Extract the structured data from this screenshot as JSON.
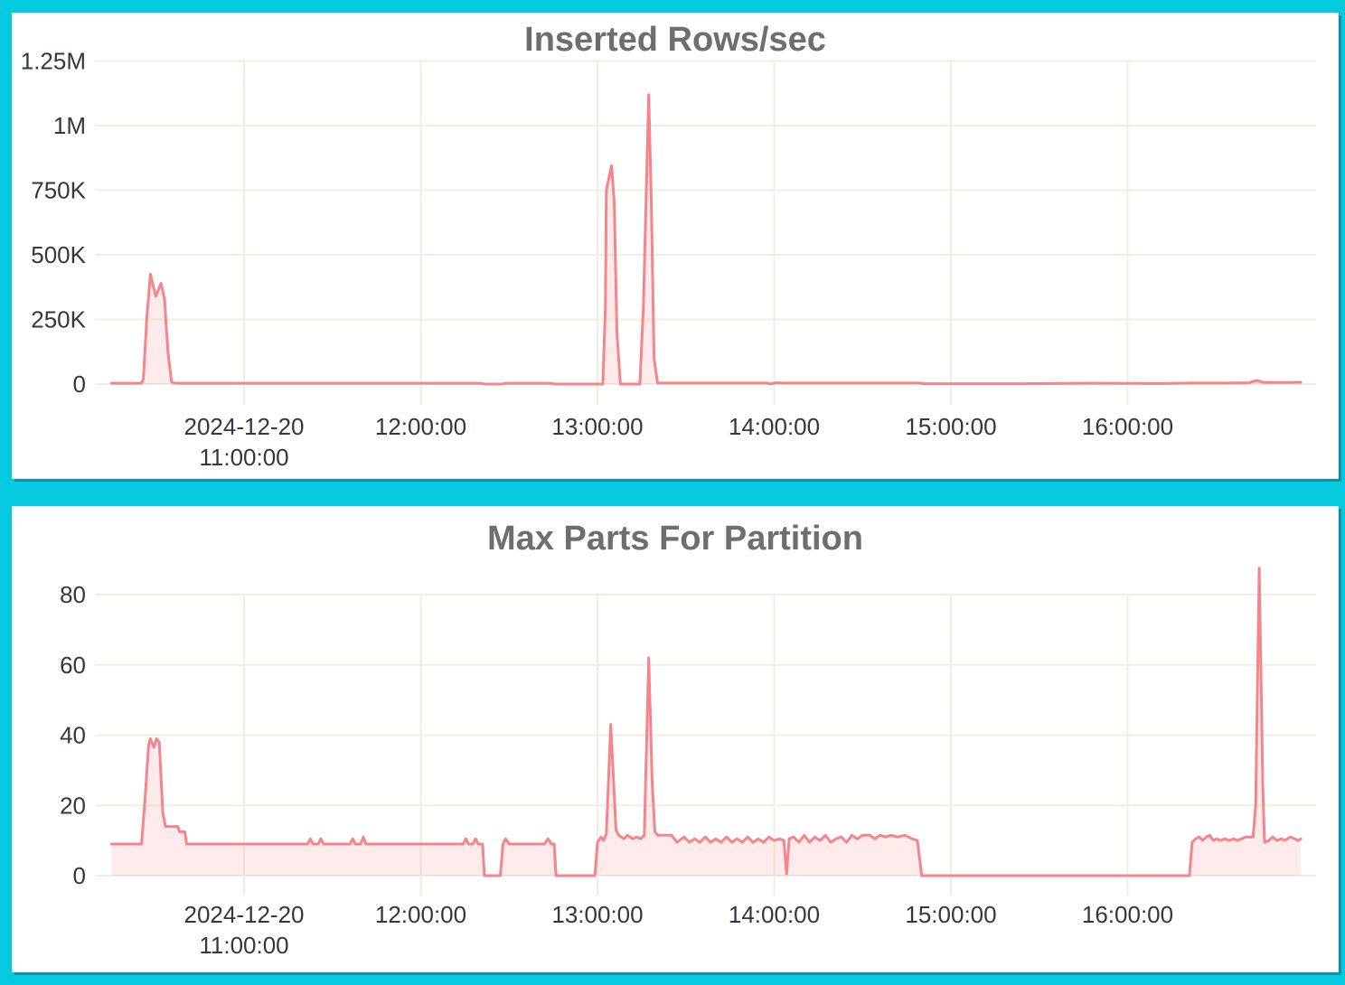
{
  "page": {
    "background_color": "#05C9DE",
    "panel_color": "#FFFFFF",
    "panel_shadow_color": "#0994A9"
  },
  "charts": [
    {
      "title": "Inserted Rows/sec",
      "type": "area",
      "line_color": "#F4858B",
      "fill_color": "rgba(244,133,139,0.16)",
      "grid_color": "#F0EEE1",
      "tick_color": "#32383E",
      "title_color": "#6E6E6E",
      "ylim": [
        0,
        1250000
      ],
      "xlim_hours": [
        10.25,
        16.98
      ],
      "grid": true,
      "legend": "none",
      "y_ticks": [
        {
          "v": 0,
          "label": "0"
        },
        {
          "v": 250000,
          "label": "250K"
        },
        {
          "v": 500000,
          "label": "500K"
        },
        {
          "v": 750000,
          "label": "750K"
        },
        {
          "v": 1000000,
          "label": "1M"
        },
        {
          "v": 1250000,
          "label": "1.25M"
        }
      ],
      "x_ticks": [
        {
          "t": 11,
          "lines": [
            "2024-12-20",
            "11:00:00"
          ]
        },
        {
          "t": 12,
          "lines": [
            "12:00:00"
          ]
        },
        {
          "t": 13,
          "lines": [
            "13:00:00"
          ]
        },
        {
          "t": 14,
          "lines": [
            "14:00:00"
          ]
        },
        {
          "t": 15,
          "lines": [
            "15:00:00"
          ]
        },
        {
          "t": 16,
          "lines": [
            "16:00:00"
          ]
        }
      ],
      "points": [
        [
          10.25,
          3000
        ],
        [
          10.42,
          3000
        ],
        [
          10.43,
          20000
        ],
        [
          10.45,
          260000
        ],
        [
          10.47,
          425000
        ],
        [
          10.5,
          340000
        ],
        [
          10.53,
          390000
        ],
        [
          10.55,
          330000
        ],
        [
          10.57,
          120000
        ],
        [
          10.59,
          8000
        ],
        [
          10.61,
          3000
        ],
        [
          11.2,
          3000
        ],
        [
          12.0,
          3000
        ],
        [
          12.34,
          3000
        ],
        [
          12.36,
          0
        ],
        [
          12.46,
          0
        ],
        [
          12.48,
          3000
        ],
        [
          12.73,
          3000
        ],
        [
          12.76,
          0
        ],
        [
          13.0,
          0
        ],
        [
          13.03,
          0
        ],
        [
          13.045,
          300000
        ],
        [
          13.05,
          750000
        ],
        [
          13.08,
          845000
        ],
        [
          13.095,
          700000
        ],
        [
          13.11,
          200000
        ],
        [
          13.13,
          0
        ],
        [
          13.24,
          0
        ],
        [
          13.26,
          300000
        ],
        [
          13.29,
          1120000
        ],
        [
          13.305,
          700000
        ],
        [
          13.32,
          100000
        ],
        [
          13.34,
          4000
        ],
        [
          13.6,
          4000
        ],
        [
          13.96,
          4000
        ],
        [
          13.98,
          500
        ],
        [
          14.01,
          5000
        ],
        [
          14.05,
          4000
        ],
        [
          14.4,
          4000
        ],
        [
          14.82,
          4000
        ],
        [
          14.85,
          1500
        ],
        [
          15.4,
          1500
        ],
        [
          15.8,
          3000
        ],
        [
          16.2,
          2000
        ],
        [
          16.36,
          4000
        ],
        [
          16.55,
          4000
        ],
        [
          16.69,
          5000
        ],
        [
          16.73,
          14000
        ],
        [
          16.77,
          6000
        ],
        [
          16.9,
          6000
        ],
        [
          16.98,
          7000
        ]
      ]
    },
    {
      "title": "Max Parts For Partition",
      "type": "area",
      "line_color": "#F4858B",
      "fill_color": "rgba(244,133,139,0.16)",
      "grid_color": "#F0EEE1",
      "tick_color": "#32383E",
      "title_color": "#6E6E6E",
      "ylim": [
        0,
        80
      ],
      "xlim_hours": [
        10.25,
        16.98
      ],
      "grid": true,
      "legend": "none",
      "y_ticks": [
        {
          "v": 0,
          "label": "0"
        },
        {
          "v": 20,
          "label": "20"
        },
        {
          "v": 40,
          "label": "40"
        },
        {
          "v": 60,
          "label": "60"
        },
        {
          "v": 80,
          "label": "80"
        }
      ],
      "x_ticks": [
        {
          "t": 11,
          "lines": [
            "2024-12-20",
            "11:00:00"
          ]
        },
        {
          "t": 12,
          "lines": [
            "12:00:00"
          ]
        },
        {
          "t": 13,
          "lines": [
            "13:00:00"
          ]
        },
        {
          "t": 14,
          "lines": [
            "14:00:00"
          ]
        },
        {
          "t": 15,
          "lines": [
            "15:00:00"
          ]
        },
        {
          "t": 16,
          "lines": [
            "16:00:00"
          ]
        }
      ],
      "points": [
        [
          10.25,
          9
        ],
        [
          10.42,
          9
        ],
        [
          10.44,
          22
        ],
        [
          10.46,
          37
        ],
        [
          10.47,
          39
        ],
        [
          10.49,
          36.5
        ],
        [
          10.505,
          39
        ],
        [
          10.52,
          38
        ],
        [
          10.54,
          18
        ],
        [
          10.555,
          14
        ],
        [
          10.625,
          14
        ],
        [
          10.635,
          12.5
        ],
        [
          10.665,
          12.5
        ],
        [
          10.675,
          9
        ],
        [
          11.1,
          9
        ],
        [
          11.36,
          9
        ],
        [
          11.375,
          10.5
        ],
        [
          11.39,
          9
        ],
        [
          11.42,
          9
        ],
        [
          11.435,
          10.5
        ],
        [
          11.45,
          9
        ],
        [
          11.6,
          9
        ],
        [
          11.615,
          10.5
        ],
        [
          11.63,
          9
        ],
        [
          11.66,
          9
        ],
        [
          11.675,
          11
        ],
        [
          11.69,
          9
        ],
        [
          12.24,
          9
        ],
        [
          12.255,
          10.5
        ],
        [
          12.27,
          9
        ],
        [
          12.295,
          9
        ],
        [
          12.31,
          10.5
        ],
        [
          12.325,
          9
        ],
        [
          12.35,
          9
        ],
        [
          12.36,
          0
        ],
        [
          12.45,
          0
        ],
        [
          12.465,
          9
        ],
        [
          12.48,
          10.5
        ],
        [
          12.5,
          9
        ],
        [
          12.7,
          9
        ],
        [
          12.72,
          10.5
        ],
        [
          12.74,
          9
        ],
        [
          12.755,
          9
        ],
        [
          12.765,
          0
        ],
        [
          12.985,
          0
        ],
        [
          13.0,
          9.5
        ],
        [
          13.02,
          11
        ],
        [
          13.035,
          10
        ],
        [
          13.05,
          12
        ],
        [
          13.075,
          43
        ],
        [
          13.09,
          28
        ],
        [
          13.105,
          13
        ],
        [
          13.12,
          11.5
        ],
        [
          13.15,
          10.5
        ],
        [
          13.17,
          11.5
        ],
        [
          13.2,
          10.5
        ],
        [
          13.22,
          11
        ],
        [
          13.245,
          10.5
        ],
        [
          13.265,
          11.5
        ],
        [
          13.29,
          62
        ],
        [
          13.31,
          26
        ],
        [
          13.325,
          12.5
        ],
        [
          13.34,
          11.5
        ],
        [
          13.42,
          11.5
        ],
        [
          13.45,
          9.5
        ],
        [
          13.49,
          11
        ],
        [
          13.52,
          9.5
        ],
        [
          13.55,
          10.5
        ],
        [
          13.58,
          9.5
        ],
        [
          13.61,
          11
        ],
        [
          13.64,
          9.5
        ],
        [
          13.67,
          10.5
        ],
        [
          13.7,
          9.5
        ],
        [
          13.73,
          11
        ],
        [
          13.76,
          9.5
        ],
        [
          13.79,
          10.5
        ],
        [
          13.82,
          9.5
        ],
        [
          13.85,
          11
        ],
        [
          13.88,
          9.5
        ],
        [
          13.91,
          10.5
        ],
        [
          13.94,
          9.5
        ],
        [
          13.97,
          11
        ],
        [
          14.0,
          10
        ],
        [
          14.03,
          10.5
        ],
        [
          14.055,
          10
        ],
        [
          14.07,
          0.5
        ],
        [
          14.085,
          10.5
        ],
        [
          14.11,
          11
        ],
        [
          14.14,
          9.5
        ],
        [
          14.17,
          11.5
        ],
        [
          14.2,
          9.5
        ],
        [
          14.23,
          11
        ],
        [
          14.26,
          10
        ],
        [
          14.29,
          11.5
        ],
        [
          14.32,
          9.5
        ],
        [
          14.35,
          10.5
        ],
        [
          14.38,
          11
        ],
        [
          14.41,
          9.5
        ],
        [
          14.44,
          11.5
        ],
        [
          14.47,
          10.5
        ],
        [
          14.5,
          11.5
        ],
        [
          14.54,
          11.5
        ],
        [
          14.57,
          10.5
        ],
        [
          14.6,
          11.5
        ],
        [
          14.63,
          11
        ],
        [
          14.66,
          11.5
        ],
        [
          14.7,
          11
        ],
        [
          14.74,
          11.5
        ],
        [
          14.78,
          10.5
        ],
        [
          14.81,
          10
        ],
        [
          14.835,
          0
        ],
        [
          16.35,
          0
        ],
        [
          16.365,
          9.5
        ],
        [
          16.385,
          10.5
        ],
        [
          16.405,
          11
        ],
        [
          16.425,
          10
        ],
        [
          16.445,
          11
        ],
        [
          16.465,
          11.5
        ],
        [
          16.485,
          10
        ],
        [
          16.505,
          10.5
        ],
        [
          16.525,
          10
        ],
        [
          16.55,
          10.5
        ],
        [
          16.575,
          10
        ],
        [
          16.6,
          10.5
        ],
        [
          16.62,
          10
        ],
        [
          16.645,
          10.5
        ],
        [
          16.67,
          11
        ],
        [
          16.71,
          11
        ],
        [
          16.725,
          20
        ],
        [
          16.745,
          87.5
        ],
        [
          16.765,
          25
        ],
        [
          16.775,
          9.5
        ],
        [
          16.8,
          10
        ],
        [
          16.82,
          11
        ],
        [
          16.845,
          10
        ],
        [
          16.87,
          10.5
        ],
        [
          16.89,
          10
        ],
        [
          16.92,
          11
        ],
        [
          16.945,
          10.5
        ],
        [
          16.965,
          10
        ],
        [
          16.98,
          10.5
        ]
      ]
    }
  ]
}
